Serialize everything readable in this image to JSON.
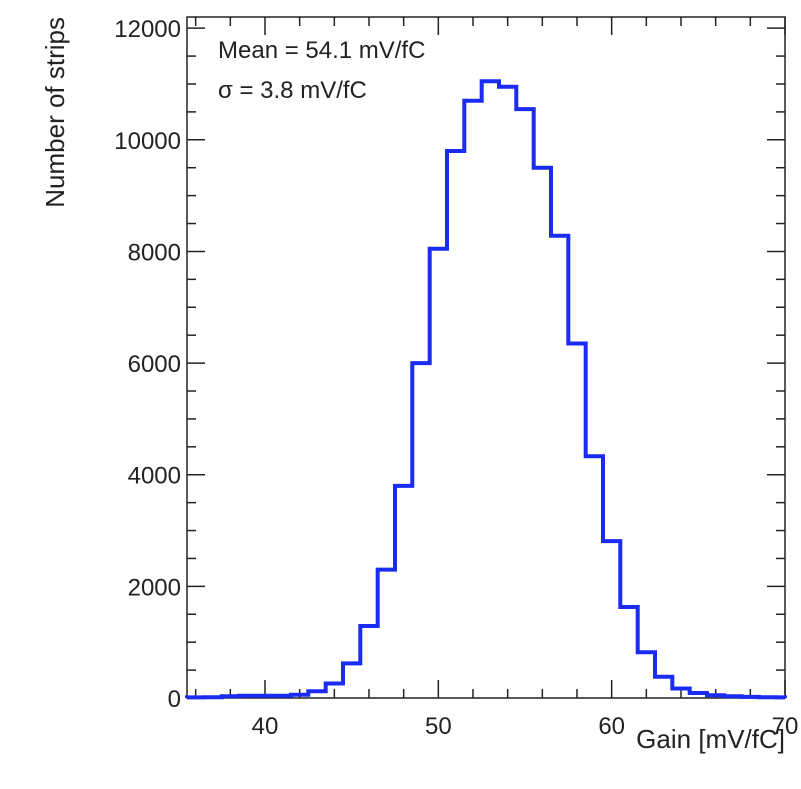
{
  "chart_data": {
    "type": "histogram",
    "xlabel": "Gain [mV/fC]",
    "ylabel": "Number of strips",
    "xlim": [
      35.5,
      70
    ],
    "ylim": [
      0,
      12200
    ],
    "xticks": [
      40,
      50,
      60,
      70
    ],
    "xtick_labels": [
      "40",
      "50",
      "60",
      "70"
    ],
    "yticks": [
      0,
      2000,
      4000,
      6000,
      8000,
      10000,
      12000
    ],
    "ytick_labels": [
      "0",
      "2000",
      "4000",
      "6000",
      "8000",
      "10000",
      "12000"
    ],
    "stats": [
      "Mean = 54.1 mV/fC",
      "σ = 3.8 mV/fC"
    ],
    "line_color": "#1a2cf2",
    "bin_edges": [
      35.5,
      36.5,
      37.5,
      38.5,
      39.5,
      40.5,
      41.5,
      42.5,
      43.5,
      44.5,
      45.5,
      46.5,
      47.5,
      48.5,
      49.5,
      50.5,
      51.5,
      52.5,
      53.5,
      54.5,
      55.5,
      56.5,
      57.5,
      58.5,
      59.5,
      60.5,
      61.5,
      62.5,
      63.5,
      64.5,
      65.5,
      66.5,
      67.5,
      68.5,
      69.5,
      70
    ],
    "values": [
      10,
      15,
      30,
      40,
      40,
      40,
      60,
      120,
      260,
      620,
      1290,
      2300,
      3800,
      6000,
      8050,
      9800,
      10700,
      11050,
      10950,
      10550,
      9500,
      8280,
      6350,
      4330,
      2810,
      1630,
      820,
      380,
      170,
      90,
      50,
      30,
      20,
      15,
      10
    ]
  }
}
